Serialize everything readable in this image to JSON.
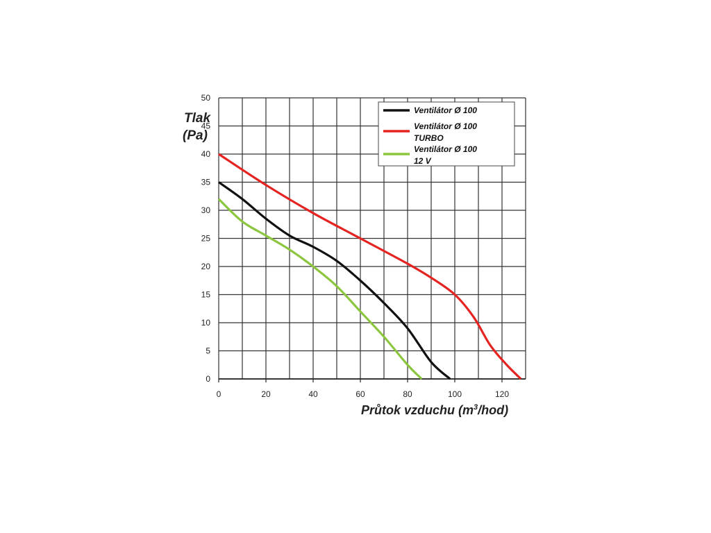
{
  "chart_data": {
    "type": "line",
    "title": "",
    "ylabel_line1": "Tlak",
    "ylabel_line2": "(Pa)",
    "xlabel_text": "Průtok vzduchu (m",
    "xlabel_sup": "3",
    "xlabel_end": "/hod)",
    "xlim": [
      0,
      130
    ],
    "ylim": [
      0,
      50
    ],
    "x_ticks": [
      0,
      20,
      40,
      60,
      80,
      100,
      120
    ],
    "y_ticks": [
      0,
      5,
      10,
      15,
      20,
      25,
      30,
      35,
      40,
      45,
      50
    ],
    "grid": true,
    "legend_position": "top-right",
    "series": [
      {
        "name_line1": "Ventilátor Ø 100",
        "name_line2": "",
        "color": "#111111",
        "x": [
          0,
          10,
          20,
          30,
          40,
          50,
          60,
          70,
          80,
          90,
          98
        ],
        "y": [
          35,
          32,
          28.5,
          25.5,
          23.5,
          21,
          17.5,
          13.5,
          9,
          3,
          0
        ]
      },
      {
        "name_line1": "Ventilátor Ø 100",
        "name_line2": "TURBO",
        "color": "#e52421",
        "x": [
          0,
          20,
          40,
          60,
          80,
          90,
          100,
          108,
          115,
          122,
          128
        ],
        "y": [
          40,
          34.5,
          29.5,
          25,
          20.5,
          18,
          15,
          11,
          6,
          2.5,
          0
        ]
      },
      {
        "name_line1": "Ventilátor Ø 100",
        "name_line2": "12 V",
        "color": "#8cc63f",
        "x": [
          0,
          10,
          20,
          30,
          40,
          50,
          60,
          70,
          80,
          86
        ],
        "y": [
          32,
          28,
          25.5,
          23,
          20,
          16.5,
          12,
          7.5,
          2.5,
          0
        ]
      }
    ]
  }
}
